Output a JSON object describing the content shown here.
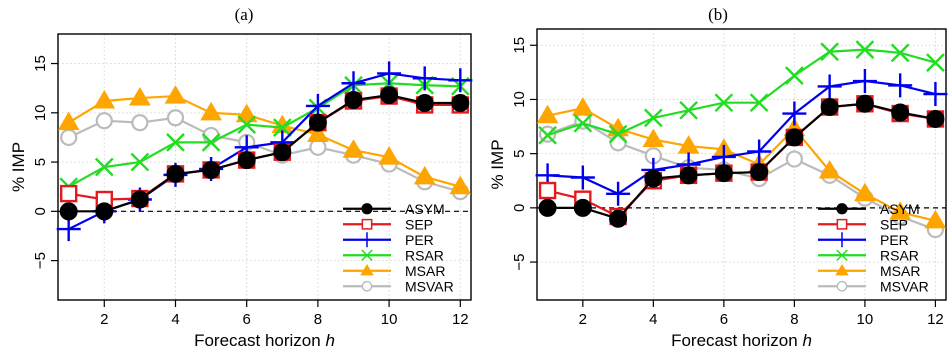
{
  "chart_data": [
    {
      "type": "line",
      "title": "(a)",
      "xlabel": "Forecast horizon",
      "xlabel_italic": "h",
      "ylabel": "% IMP",
      "xlim": [
        0.7,
        12.3
      ],
      "ylim": [
        -9.0,
        18.0
      ],
      "xticks": [
        2,
        4,
        6,
        8,
        10,
        12
      ],
      "yticks": [
        -5,
        0,
        5,
        10,
        15
      ],
      "grid": true,
      "reference_line": 0,
      "legend_position": "bottom-right",
      "x": [
        1,
        2,
        3,
        4,
        5,
        6,
        7,
        8,
        9,
        10,
        11,
        12
      ],
      "series": [
        {
          "name": "ASYM",
          "color": "#000000",
          "marker": "filled-circle",
          "values": [
            0.0,
            0.0,
            1.2,
            3.8,
            4.2,
            5.2,
            6.0,
            9.0,
            11.3,
            11.8,
            11.0,
            11.0
          ]
        },
        {
          "name": "SEP",
          "color": "#e41a1c",
          "marker": "square",
          "values": [
            1.8,
            1.2,
            1.3,
            3.8,
            4.2,
            5.2,
            6.0,
            9.0,
            11.2,
            11.7,
            10.8,
            10.8
          ]
        },
        {
          "name": "PER",
          "color": "#0000ee",
          "marker": "plus",
          "values": [
            -1.8,
            0.0,
            1.2,
            3.7,
            4.3,
            6.5,
            7.0,
            10.7,
            13.0,
            14.0,
            13.5,
            13.3
          ]
        },
        {
          "name": "RSAR",
          "color": "#22dd22",
          "marker": "cross",
          "values": [
            2.5,
            4.5,
            5.0,
            7.0,
            7.0,
            8.8,
            8.5,
            10.5,
            12.8,
            13.0,
            12.8,
            12.7
          ]
        },
        {
          "name": "MSAR",
          "color": "#ffa500",
          "marker": "filled-triangle",
          "values": [
            9.0,
            11.2,
            11.5,
            11.7,
            10.0,
            9.8,
            8.7,
            7.8,
            6.2,
            5.5,
            3.5,
            2.5
          ]
        },
        {
          "name": "MSVAR",
          "color": "#bbbbbb",
          "marker": "circle",
          "values": [
            7.5,
            9.2,
            9.0,
            9.5,
            7.7,
            7.0,
            5.7,
            6.5,
            5.7,
            4.8,
            3.0,
            2.0
          ]
        }
      ]
    },
    {
      "type": "line",
      "title": "(b)",
      "xlabel": "Forecast horizon",
      "xlabel_italic": "h",
      "ylabel": "% IMP",
      "xlim": [
        0.7,
        12.3
      ],
      "ylim": [
        -8.5,
        16.5
      ],
      "xticks": [
        2,
        4,
        6,
        8,
        10,
        12
      ],
      "yticks": [
        -5,
        0,
        5,
        10,
        15
      ],
      "grid": true,
      "reference_line": 0,
      "legend_position": "bottom-right",
      "x": [
        1,
        2,
        3,
        4,
        5,
        6,
        7,
        8,
        9,
        10,
        11,
        12
      ],
      "series": [
        {
          "name": "ASYM",
          "color": "#000000",
          "marker": "filled-circle",
          "values": [
            0.0,
            0.0,
            -1.0,
            2.7,
            3.0,
            3.2,
            3.3,
            6.5,
            9.3,
            9.6,
            8.8,
            8.2
          ]
        },
        {
          "name": "SEP",
          "color": "#e41a1c",
          "marker": "square",
          "values": [
            1.6,
            0.8,
            -0.8,
            2.5,
            3.0,
            3.2,
            3.3,
            6.5,
            9.3,
            9.6,
            8.7,
            8.2
          ]
        },
        {
          "name": "PER",
          "color": "#0000ee",
          "marker": "plus",
          "values": [
            3.0,
            2.8,
            1.3,
            3.5,
            4.0,
            4.7,
            5.2,
            8.7,
            11.2,
            11.7,
            11.3,
            10.5
          ]
        },
        {
          "name": "RSAR",
          "color": "#22dd22",
          "marker": "cross",
          "values": [
            6.7,
            7.8,
            6.8,
            8.3,
            9.0,
            9.7,
            9.7,
            12.2,
            14.4,
            14.6,
            14.3,
            13.4
          ]
        },
        {
          "name": "MSAR",
          "color": "#ffa500",
          "marker": "filled-triangle",
          "values": [
            8.5,
            9.2,
            7.3,
            6.3,
            5.7,
            5.4,
            4.0,
            7.3,
            3.4,
            1.3,
            -0.4,
            -1.2
          ]
        },
        {
          "name": "MSVAR",
          "color": "#bbbbbb",
          "marker": "circle",
          "values": [
            6.8,
            8.0,
            6.0,
            4.8,
            3.7,
            3.5,
            2.7,
            4.5,
            3.0,
            0.9,
            -0.8,
            -2.0
          ]
        }
      ]
    }
  ]
}
